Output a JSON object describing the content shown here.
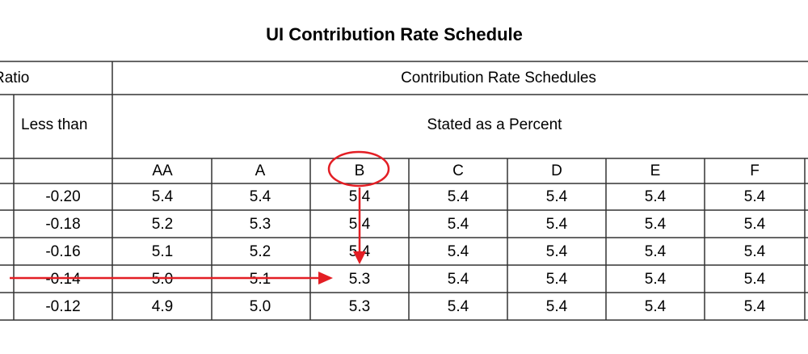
{
  "title": "UI Contribution Rate Schedule",
  "header": {
    "ratio": "Ratio",
    "less_than": "Less than",
    "schedules": "Contribution Rate Schedules",
    "stated": "Stated as a Percent"
  },
  "columns": [
    "AA",
    "A",
    "B",
    "C",
    "D",
    "E",
    "F"
  ],
  "rows": [
    {
      "less_than": "-0.20",
      "rates": [
        "5.4",
        "5.4",
        "5.4",
        "5.4",
        "5.4",
        "5.4",
        "5.4"
      ]
    },
    {
      "less_than": "-0.18",
      "rates": [
        "5.2",
        "5.3",
        "5.4",
        "5.4",
        "5.4",
        "5.4",
        "5.4"
      ]
    },
    {
      "less_than": "-0.16",
      "rates": [
        "5.1",
        "5.2",
        "5.4",
        "5.4",
        "5.4",
        "5.4",
        "5.4"
      ]
    },
    {
      "less_than": "-0.14",
      "rates": [
        "5.0",
        "5.1",
        "5.3",
        "5.4",
        "5.4",
        "5.4",
        "5.4"
      ]
    },
    {
      "less_than": "-0.12",
      "rates": [
        "4.9",
        "5.0",
        "5.3",
        "5.4",
        "5.4",
        "5.4",
        "5.4"
      ]
    }
  ],
  "annotations": {
    "color": "#e31e24",
    "circled_column": 2,
    "highlighted_row": 3
  }
}
